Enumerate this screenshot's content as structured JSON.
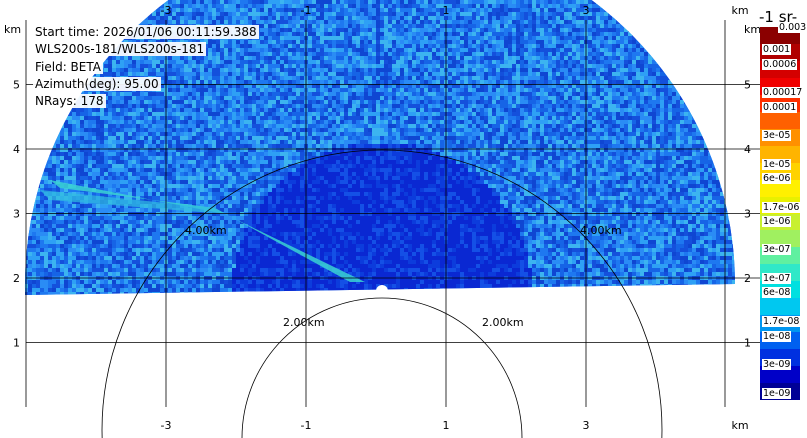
{
  "info": {
    "start_time": "Start time: 2026/01/06 00:11:59.388",
    "device": "WLS200s-181/WLS200s-181",
    "field": "Field: BETA",
    "azimuth": "Azimuth(deg): 95.00",
    "nrays": "NRays: 178"
  },
  "axes": {
    "x_ticks": [
      "-3",
      "-1",
      "1",
      "3"
    ],
    "y_ticks": [
      "5",
      "4",
      "3",
      "2",
      "1"
    ],
    "unit": "km"
  },
  "range_rings": [
    "2.00km",
    "2.00km",
    "4.00km",
    "4.00km"
  ],
  "colorbar": {
    "title": "-1 sr-",
    "top_label": "0.003",
    "labels": [
      "0.001",
      "0.0006",
      "0.00017",
      "0.0001",
      "3e-05",
      "1e-05",
      "6e-06",
      "1.7e-06",
      "1e-06",
      "3e-07",
      "1e-07",
      "6e-08",
      "1.7e-08",
      "1e-08",
      "3e-09",
      "1e-09"
    ],
    "colors": [
      "#8b0000",
      "#b00000",
      "#d40000",
      "#f00000",
      "#ff3000",
      "#ff6000",
      "#ff9000",
      "#ffb400",
      "#ffd200",
      "#fff000",
      "#e8f000",
      "#c8f030",
      "#a0f060",
      "#60f0a0",
      "#30e8c8",
      "#00e0e0",
      "#00c8f0",
      "#0096f0",
      "#0060f0",
      "#0030e0",
      "#0000c8",
      "#000096"
    ]
  }
}
